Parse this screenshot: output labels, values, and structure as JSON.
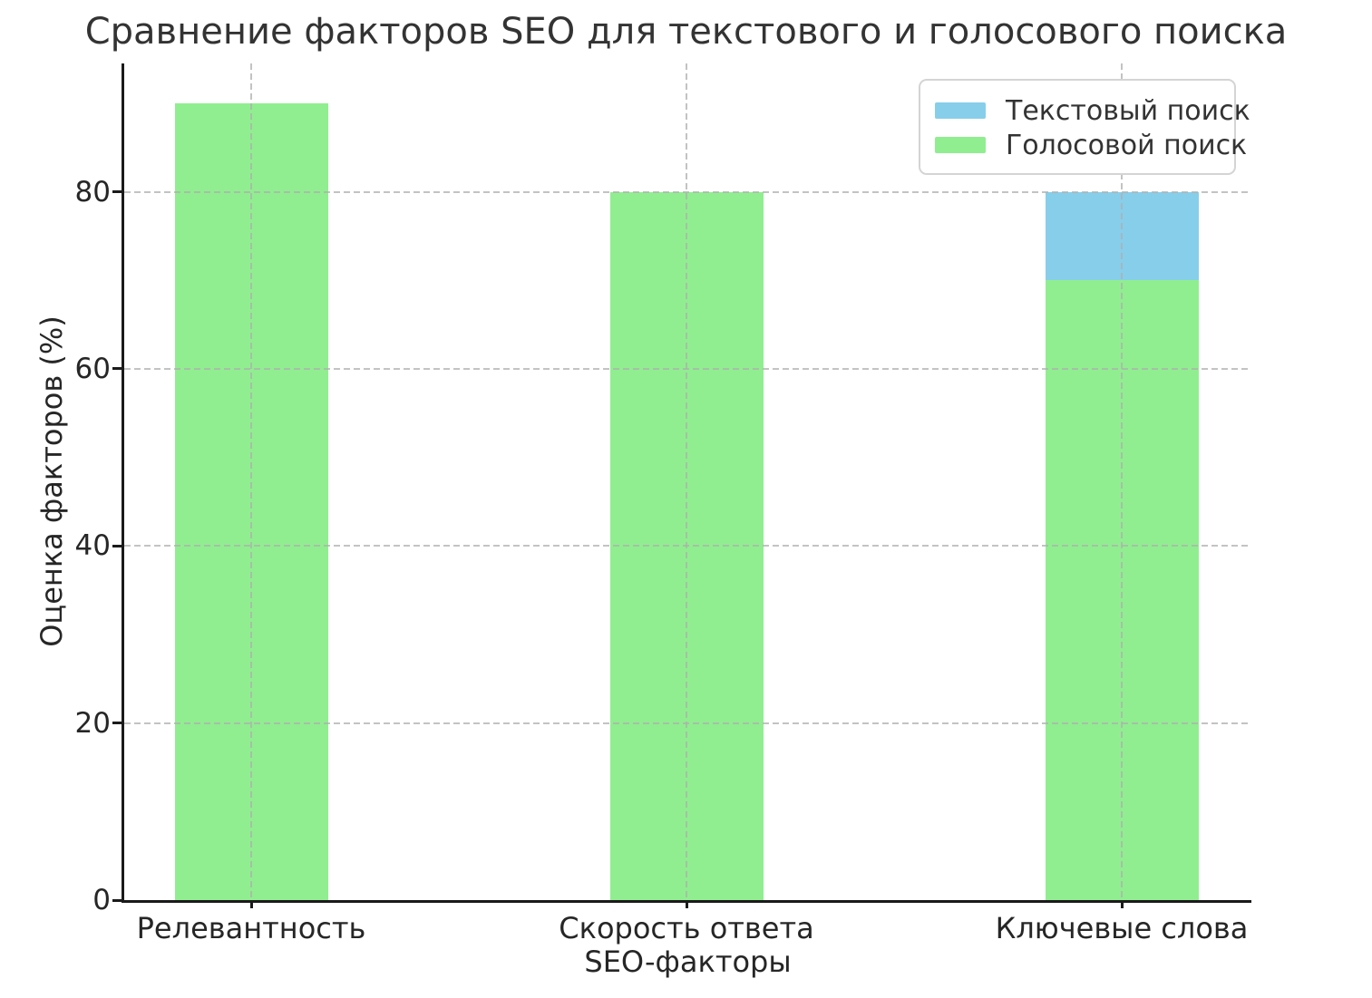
{
  "chart_data": {
    "type": "bar",
    "title": "Сравнение факторов SEO для текстового и голосового поиска",
    "xlabel": "SEO-факторы",
    "ylabel": "Оценка факторов (%)",
    "categories": [
      "Релевантность",
      "Скорость ответа",
      "Ключевые слова"
    ],
    "series": [
      {
        "name": "Текстовый поиск",
        "color": "#87CEEB",
        "values": [
          null,
          null,
          80
        ]
      },
      {
        "name": "Голосовой поиск",
        "color": "#90EE90",
        "values": [
          90,
          80,
          70
        ]
      }
    ],
    "bar_layout": "overlapping-same-x",
    "visible_segments": [
      {
        "category": "Ключевые слова",
        "series": "Текстовый поиск",
        "from": 70,
        "to": 80
      }
    ],
    "ylim": [
      0,
      94.5
    ],
    "yticks": [
      0,
      20,
      40,
      60,
      80
    ],
    "grid": "dashed, horizontal and vertical, drawn above bars",
    "legend_position": "upper right"
  },
  "style_colors": {
    "text_search": "#87CEEB",
    "voice_search": "#90EE90",
    "grid": "#b0b0b0",
    "spine": "#1a1a1a",
    "text": "#333333",
    "background": "#ffffff"
  }
}
